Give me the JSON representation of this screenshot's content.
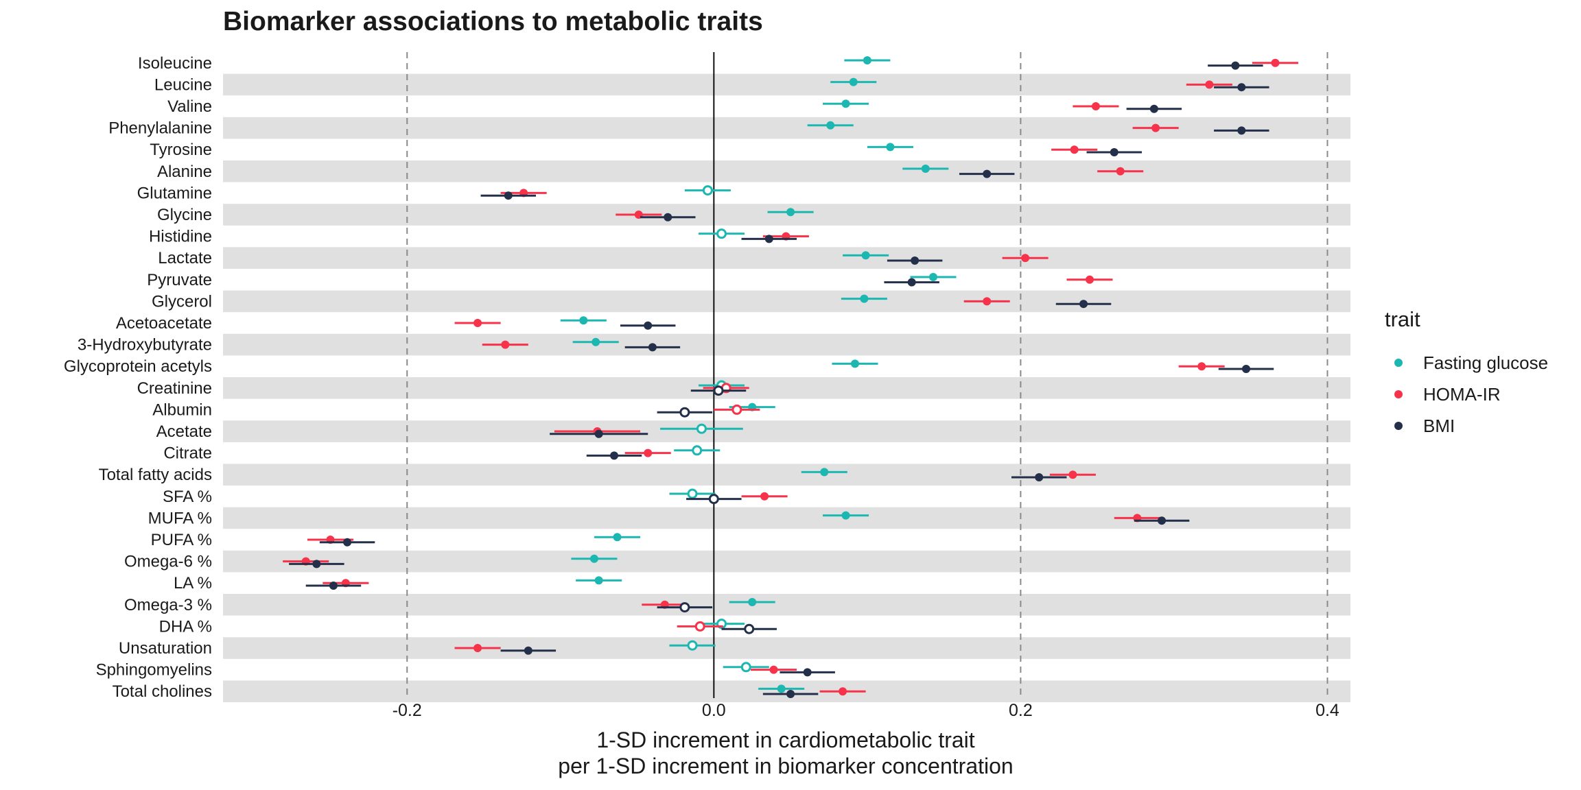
{
  "chart_data": {
    "type": "forest",
    "title": "Biomarker associations to metabolic traits",
    "xlabel_lines": [
      "1-SD increment in cardiometabolic trait",
      "per 1-SD increment in biomarker concentration"
    ],
    "ylabel": "",
    "xlim": [
      -0.32,
      0.415
    ],
    "xticks": [
      -0.2,
      0.0,
      0.2,
      0.4
    ],
    "xtick_labels": [
      "-0.2",
      "0.0",
      "0.2",
      "0.4"
    ],
    "dashed_lines_at": [
      -0.2,
      0.2,
      0.4
    ],
    "solid_line_at": 0.0,
    "legend": {
      "title": "trait",
      "position": "right"
    },
    "categories": [
      "Isoleucine",
      "Leucine",
      "Valine",
      "Phenylalanine",
      "Tyrosine",
      "Alanine",
      "Glutamine",
      "Glycine",
      "Histidine",
      "Lactate",
      "Pyruvate",
      "Glycerol",
      "Acetoacetate",
      "3-Hydroxybutyrate",
      "Glycoprotein acetyls",
      "Creatinine",
      "Albumin",
      "Acetate",
      "Citrate",
      "Total fatty acids",
      "SFA %",
      "MUFA %",
      "PUFA %",
      "Omega-6 %",
      "LA %",
      "Omega-3 %",
      "DHA %",
      "Unsaturation",
      "Sphingomyelins",
      "Total cholines"
    ],
    "series": [
      {
        "name": "Fasting glucose",
        "color": "#1bb7b0",
        "offset": -0.12,
        "estimates": [
          0.1,
          0.091,
          0.086,
          0.076,
          0.115,
          0.138,
          -0.004,
          0.05,
          0.005,
          0.099,
          0.143,
          0.098,
          -0.085,
          -0.077,
          0.092,
          0.005,
          0.025,
          -0.008,
          -0.011,
          0.072,
          -0.014,
          0.086,
          -0.063,
          -0.078,
          -0.075,
          0.025,
          0.005,
          -0.014,
          0.021,
          0.044
        ],
        "ci_half": [
          0.015,
          0.015,
          0.015,
          0.015,
          0.015,
          0.015,
          0.015,
          0.015,
          0.015,
          0.015,
          0.015,
          0.015,
          0.015,
          0.015,
          0.015,
          0.015,
          0.015,
          0.027,
          0.015,
          0.015,
          0.015,
          0.015,
          0.015,
          0.015,
          0.015,
          0.015,
          0.015,
          0.015,
          0.015,
          0.015
        ],
        "significant": [
          true,
          true,
          true,
          true,
          true,
          true,
          false,
          true,
          false,
          true,
          true,
          true,
          true,
          true,
          true,
          false,
          true,
          false,
          false,
          true,
          false,
          true,
          true,
          true,
          true,
          true,
          false,
          false,
          false,
          true
        ]
      },
      {
        "name": "HOMA-IR",
        "color": "#f6334a",
        "offset": 0.0,
        "estimates": [
          0.366,
          0.323,
          0.249,
          0.288,
          0.235,
          0.265,
          -0.124,
          -0.049,
          0.047,
          0.203,
          0.245,
          0.178,
          -0.154,
          -0.136,
          0.318,
          0.008,
          0.015,
          -0.076,
          -0.043,
          0.234,
          0.033,
          0.276,
          -0.25,
          -0.266,
          -0.24,
          -0.032,
          -0.009,
          -0.154,
          0.039,
          0.084
        ],
        "ci_half": [
          0.015,
          0.015,
          0.015,
          0.015,
          0.015,
          0.015,
          0.015,
          0.015,
          0.015,
          0.015,
          0.015,
          0.015,
          0.015,
          0.015,
          0.015,
          0.015,
          0.015,
          0.028,
          0.015,
          0.015,
          0.015,
          0.015,
          0.015,
          0.015,
          0.015,
          0.015,
          0.015,
          0.015,
          0.015,
          0.015
        ],
        "significant": [
          true,
          true,
          true,
          true,
          true,
          true,
          true,
          true,
          true,
          true,
          true,
          true,
          true,
          true,
          true,
          false,
          false,
          true,
          true,
          true,
          true,
          true,
          true,
          true,
          true,
          true,
          false,
          true,
          true,
          true
        ]
      },
      {
        "name": "BMI",
        "color": "#242f4a",
        "offset": 0.12,
        "estimates": [
          0.34,
          0.344,
          0.287,
          0.344,
          0.261,
          0.178,
          -0.134,
          -0.03,
          0.036,
          0.131,
          0.129,
          0.241,
          -0.043,
          -0.04,
          0.347,
          0.003,
          -0.019,
          -0.075,
          -0.065,
          0.212,
          0.0,
          0.292,
          -0.239,
          -0.259,
          -0.248,
          -0.019,
          0.023,
          -0.121,
          0.061,
          0.05
        ],
        "ci_half": [
          0.018,
          0.018,
          0.018,
          0.018,
          0.018,
          0.018,
          0.018,
          0.018,
          0.018,
          0.018,
          0.018,
          0.018,
          0.018,
          0.018,
          0.018,
          0.018,
          0.018,
          0.032,
          0.018,
          0.018,
          0.018,
          0.018,
          0.018,
          0.018,
          0.018,
          0.018,
          0.018,
          0.018,
          0.018,
          0.018
        ],
        "significant": [
          true,
          true,
          true,
          true,
          true,
          true,
          true,
          true,
          true,
          true,
          true,
          true,
          true,
          true,
          true,
          false,
          false,
          true,
          true,
          true,
          false,
          true,
          true,
          true,
          true,
          false,
          false,
          true,
          true,
          true
        ]
      }
    ]
  }
}
